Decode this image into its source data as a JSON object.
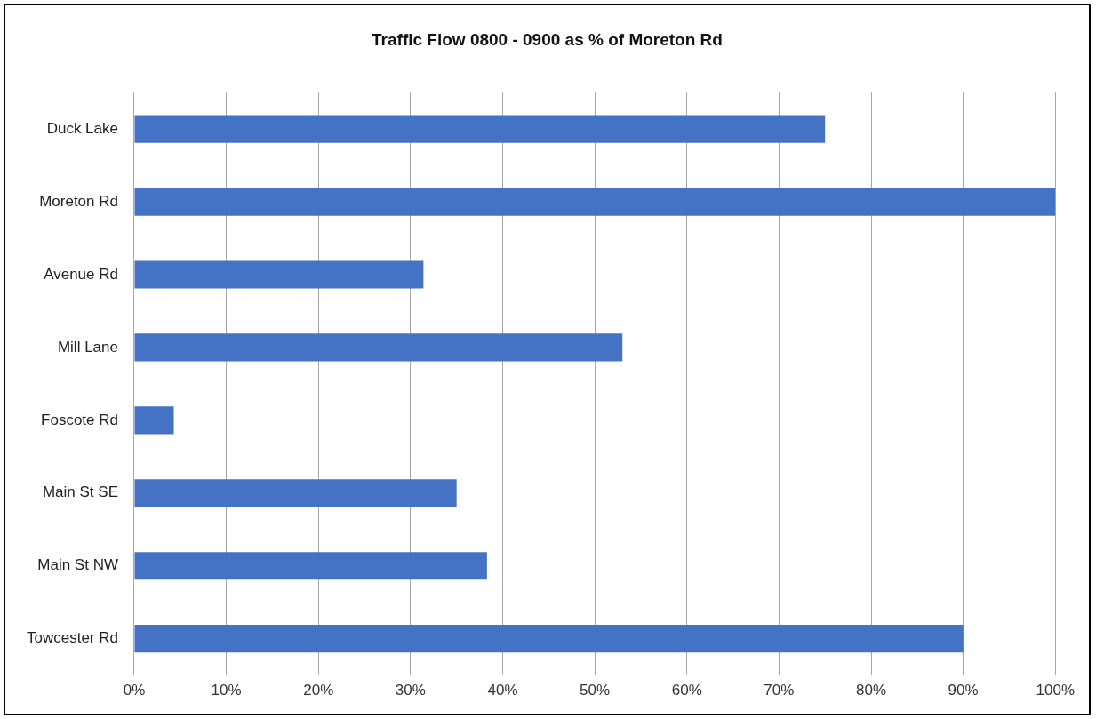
{
  "chart_data": {
    "type": "bar",
    "orientation": "horizontal",
    "title": "Traffic Flow 0800 - 0900 as % of Moreton Rd",
    "categories": [
      "Duck Lake",
      "Moreton Rd",
      "Avenue Rd",
      "Mill Lane",
      "Foscote Rd",
      "Main St SE",
      "Main St NW",
      "Towcester Rd"
    ],
    "values": [
      75,
      100,
      31.4,
      53,
      4.3,
      35,
      38.3,
      90
    ],
    "color": "#4472c4",
    "xlim": [
      0,
      100
    ],
    "xticks": [
      {
        "value": 0,
        "label": "0%"
      },
      {
        "value": 10,
        "label": "10%"
      },
      {
        "value": 20,
        "label": "20%"
      },
      {
        "value": 30,
        "label": "30%"
      },
      {
        "value": 40,
        "label": "40%"
      },
      {
        "value": 50,
        "label": "50%"
      },
      {
        "value": 60,
        "label": "60%"
      },
      {
        "value": 70,
        "label": "70%"
      },
      {
        "value": 80,
        "label": "80%"
      },
      {
        "value": 90,
        "label": "90%"
      },
      {
        "value": 100,
        "label": "100%"
      }
    ],
    "grid": "x",
    "legend": false
  }
}
